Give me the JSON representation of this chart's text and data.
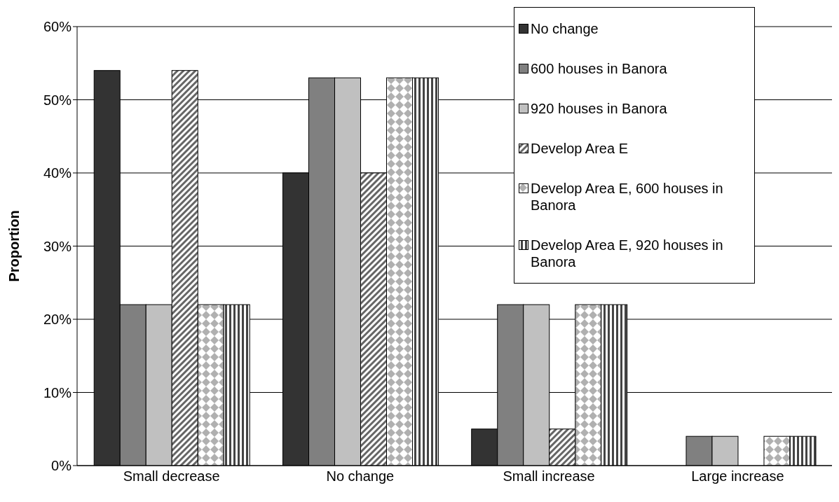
{
  "chart_data": {
    "type": "bar",
    "ylabel": "Proportion",
    "categories": [
      "Small decrease",
      "No change",
      "Small increase",
      "Large increase"
    ],
    "series": [
      {
        "name": "No change",
        "color": "#333333",
        "values": [
          54,
          40,
          5,
          0
        ]
      },
      {
        "name": "600 houses in Banora",
        "color": "#808080",
        "values": [
          22,
          53,
          22,
          4
        ]
      },
      {
        "name": "920 houses in Banora",
        "color": "#c0c0c0",
        "values": [
          22,
          53,
          22,
          4
        ]
      },
      {
        "name": "Develop Area E",
        "color": "#666666",
        "values": [
          54,
          40,
          5,
          0
        ]
      },
      {
        "name": "Develop Area E, 600 houses in Banora",
        "color": "#b0b0b0",
        "values": [
          22,
          53,
          22,
          4
        ]
      },
      {
        "name": "Develop Area E, 920 houses in Banora",
        "color": "#444444",
        "values": [
          22,
          53,
          22,
          4
        ]
      }
    ],
    "ylim": [
      0,
      60
    ],
    "yticks": [
      {
        "value": 0,
        "label": "0%"
      },
      {
        "value": 10,
        "label": "10%"
      },
      {
        "value": 20,
        "label": "20%"
      },
      {
        "value": 30,
        "label": "30%"
      },
      {
        "value": 40,
        "label": "40%"
      },
      {
        "value": 50,
        "label": "50%"
      },
      {
        "value": 60,
        "label": "60%"
      }
    ],
    "grid": "y",
    "legend": "top right"
  }
}
